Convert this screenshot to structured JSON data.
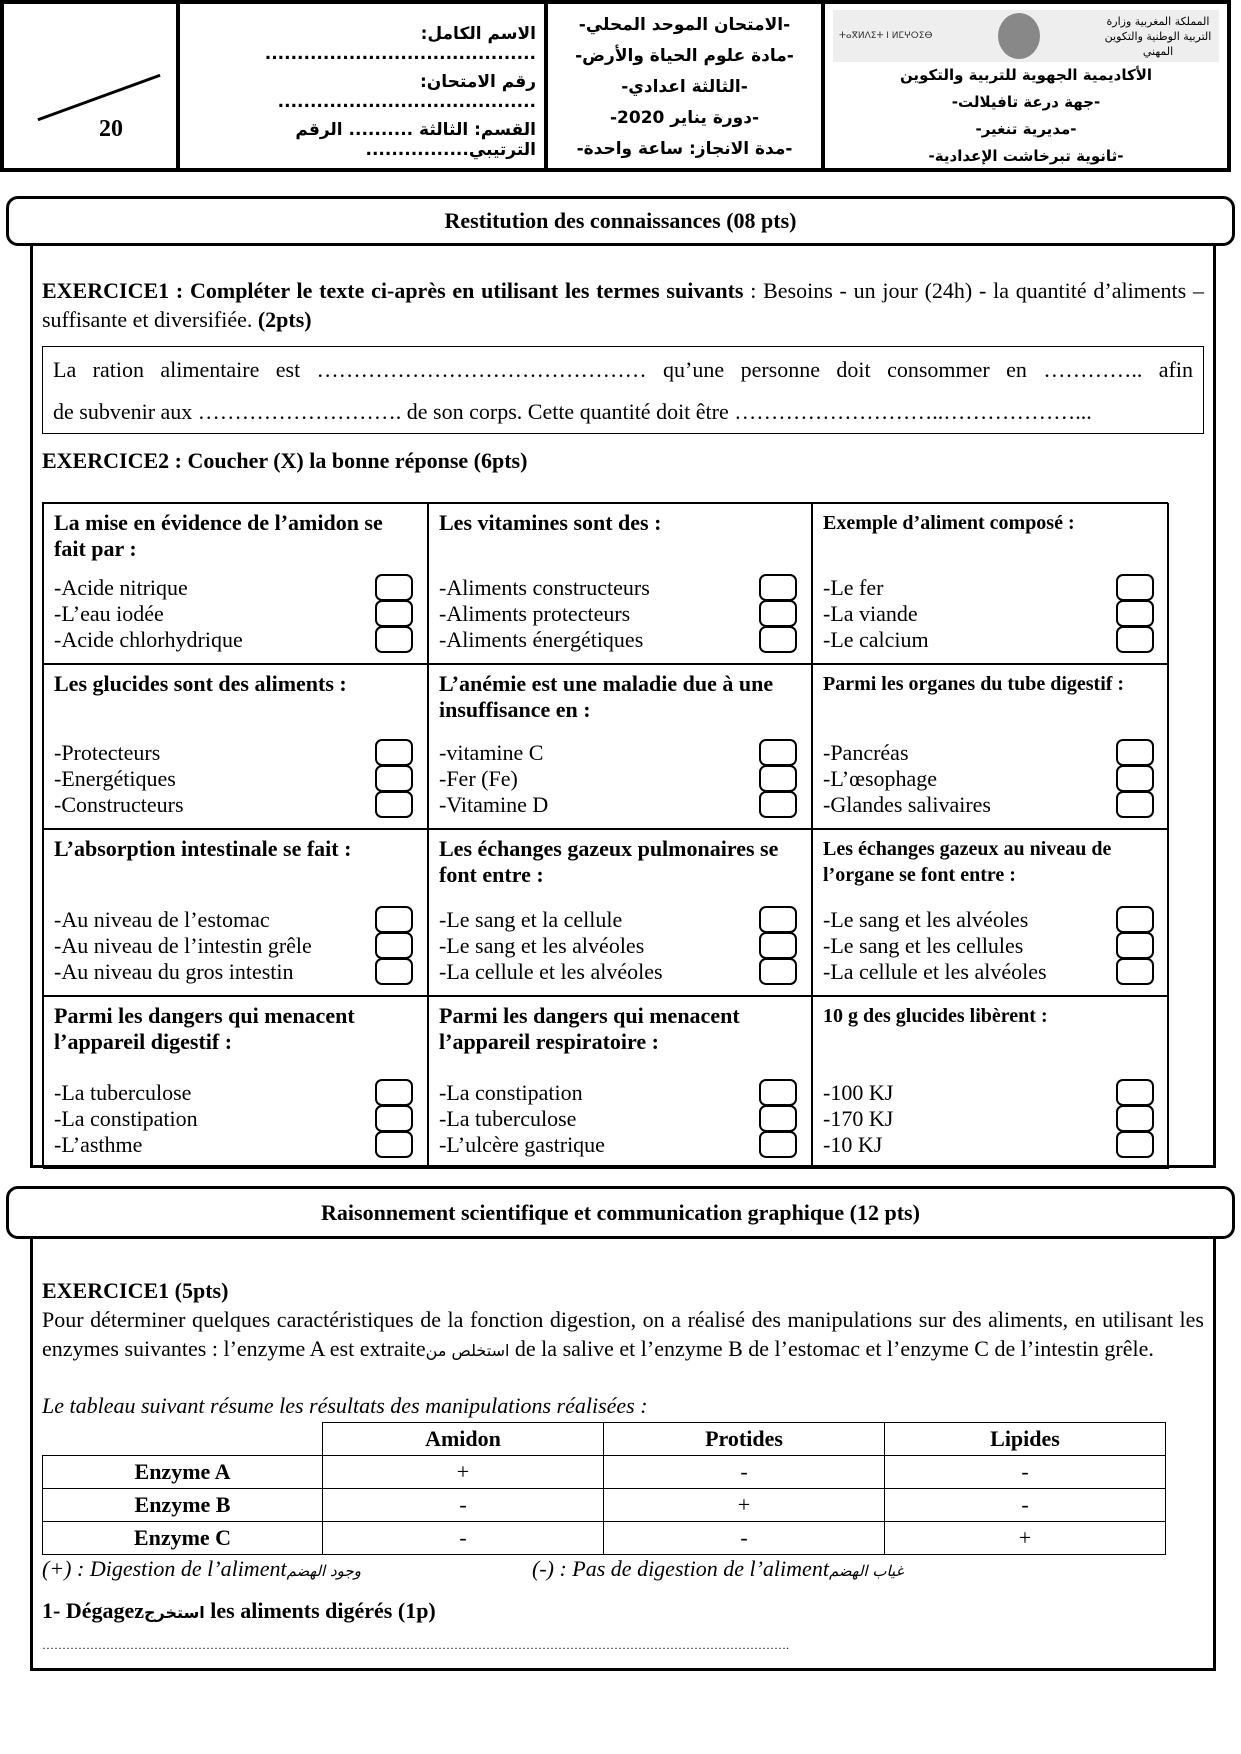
{
  "header": {
    "score": "20",
    "student": {
      "name_label": "الاسم الكامل: ..........................................",
      "exam_number_label": "رقم الامتحان: ........................................",
      "class_label": "القسم: الثالثة .......... الرقم الترتيبي................"
    },
    "exam": [
      "-الامتحان الموحد المحلي-",
      "-مادة علوم الحياة والأرض-",
      "-الثالثة اعدادي-",
      "-دورة يناير 2020-",
      "-مدة الانجاز: ساعة واحدة-"
    ],
    "institution": {
      "ministry_logo_text": "المملكة المغربية وزارة التربية الوطنية والتكوين المهني",
      "lines": [
        "الأكاديمية الجهوية للتربية والتكوين",
        "-جهة درعة تافيلالت-",
        "-مديرية تنغير-",
        "-ثانوية تبرخاشت الإعدادية-"
      ]
    }
  },
  "part1": {
    "title": "Restitution des connaissances (08 pts)",
    "ex1": {
      "title": "EXERCICE1 : Compléter le texte ci-après en utilisant les termes suivants",
      "terms": " : Besoins - un jour (24h) - la quantité d’aliments – suffisante et diversifiée. ",
      "points": "(2pts)",
      "line1": "La ration alimentaire est ……………………………………… qu’une personne doit consommer en ………….. afin",
      "line2": "de subvenir aux ………………………. de son corps. Cette quantité doit être ………………………..………………..."
    },
    "ex2": {
      "title": "EXERCICE2 : Coucher (X) la bonne réponse (6pts)",
      "questions": [
        {
          "q": "La mise en évidence de l’amidon se fait par :",
          "options": [
            "-Acide nitrique",
            "-L’eau iodée",
            "-Acide chlorhydrique"
          ]
        },
        {
          "q": "Les vitamines sont des :",
          "options": [
            "-Aliments constructeurs",
            "-Aliments protecteurs",
            "-Aliments énergétiques"
          ]
        },
        {
          "q": "Exemple d’aliment composé :",
          "options": [
            "-Le fer",
            "-La viande",
            "-Le calcium"
          ]
        },
        {
          "q": "Les glucides sont des aliments :",
          "options": [
            "-Protecteurs",
            "-Energétiques",
            "-Constructeurs"
          ]
        },
        {
          "q": "L’anémie est une maladie due à une insuffisance en :",
          "options": [
            "-vitamine C",
            "-Fer (Fe)",
            "-Vitamine D"
          ]
        },
        {
          "q": "Parmi les organes du tube digestif :",
          "options": [
            "-Pancréas",
            "-L’œsophage",
            "-Glandes salivaires"
          ]
        },
        {
          "q": "L’absorption intestinale se fait :",
          "options": [
            "-Au niveau de l’estomac",
            "-Au niveau de l’intestin grêle",
            "-Au niveau du gros intestin"
          ]
        },
        {
          "q": "Les échanges gazeux pulmonaires se font entre :",
          "options": [
            "-Le sang et la cellule",
            "-Le sang et les alvéoles",
            "-La cellule et les alvéoles"
          ]
        },
        {
          "q": "Les échanges gazeux au niveau de l’organe se font entre :",
          "options": [
            "-Le sang et les alvéoles",
            "-Le sang et les cellules",
            "-La cellule et les alvéoles"
          ]
        },
        {
          "q": "Parmi les dangers qui menacent l’appareil digestif :",
          "options": [
            "-La tuberculose",
            "-La constipation",
            "-L’asthme"
          ]
        },
        {
          "q": "Parmi les dangers qui menacent l’appareil respiratoire :",
          "options": [
            "-La constipation",
            "-La tuberculose",
            "-L’ulcère gastrique"
          ]
        },
        {
          "q": "10 g des glucides libèrent :",
          "options": [
            "-100 KJ",
            "-170 KJ",
            "-10 KJ"
          ]
        }
      ]
    }
  },
  "part2": {
    "title": "Raisonnement scientifique et communication graphique (12 pts)",
    "ex1": {
      "title": "EXERCICE1 (5pts)",
      "intro1": "Pour déterminer quelques caractéristiques de la fonction digestion, on a réalisé des manipulations sur des aliments, en utilisant les enzymes suivantes : l’enzyme A est extraite",
      "intro_ar": "استخلص من",
      "intro2": " de la salive et l’enzyme B de l’estomac et l’enzyme C de l’intestin grêle.",
      "table_caption": "Le tableau suivant résume les résultats des manipulations réalisées :",
      "table": {
        "headers": [
          "Amidon",
          "Protides",
          "Lipides"
        ],
        "rows": [
          {
            "label": "Enzyme A",
            "values": [
              "+",
              "-",
              "-"
            ]
          },
          {
            "label": "Enzyme B",
            "values": [
              "-",
              "+",
              "-"
            ]
          },
          {
            "label": "Enzyme C",
            "values": [
              "-",
              "-",
              "+"
            ]
          }
        ]
      },
      "legend_plus": "(+) : Digestion de l’aliment",
      "legend_plus_ar": "وجود الهضم",
      "legend_minus": "(-) : Pas de digestion de l’aliment",
      "legend_minus_ar": "غياب الهضم",
      "q1": "1-  Dégagez",
      "q1_ar": "استخرج",
      "q1_rest": " les aliments digérés (1p)",
      "answer_line": "……………………………………………………………………………………………………………………………………………………………………."
    }
  }
}
